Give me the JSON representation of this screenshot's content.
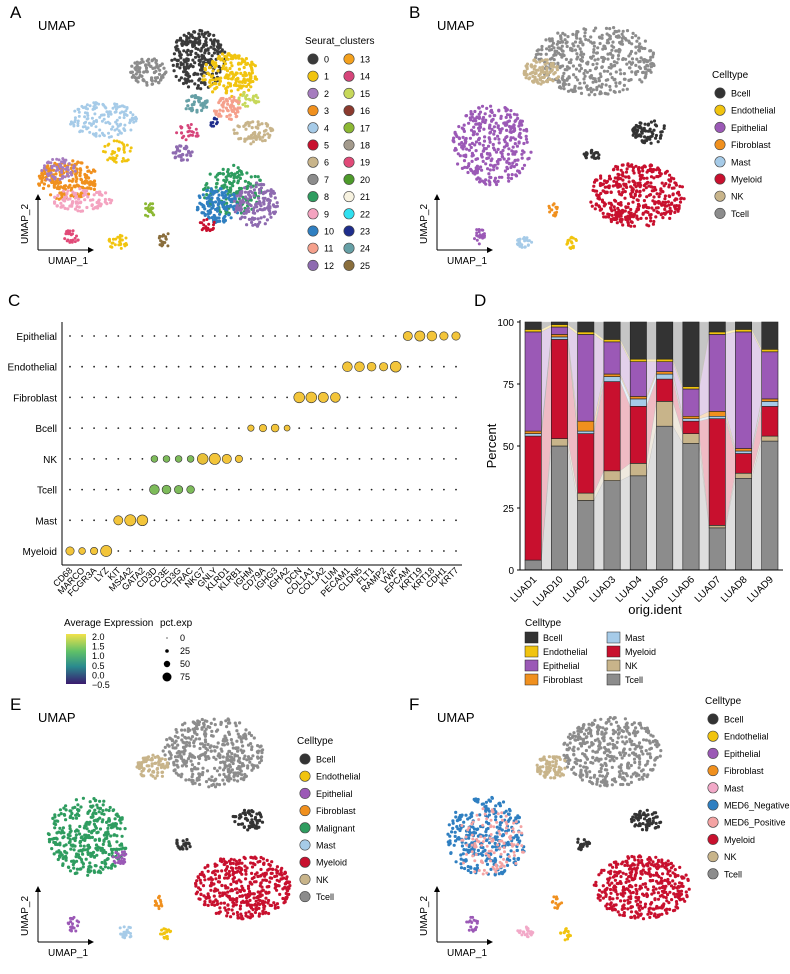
{
  "panels": {
    "A": {
      "letter": "A",
      "title": "UMAP",
      "xlabel": "UMAP_1",
      "ylabel": "UMAP_2",
      "legend_title": "Seurat_clusters"
    },
    "B": {
      "letter": "B",
      "title": "UMAP",
      "xlabel": "UMAP_1",
      "ylabel": "UMAP_2",
      "legend_title": "Celltype"
    },
    "C": {
      "letter": "C"
    },
    "D": {
      "letter": "D"
    },
    "E": {
      "letter": "E",
      "title": "UMAP",
      "xlabel": "UMAP_1",
      "ylabel": "UMAP_2",
      "legend_title": "Celltype"
    },
    "F": {
      "letter": "F",
      "title": "UMAP",
      "xlabel": "UMAP_1",
      "ylabel": "UMAP_2",
      "legend_title": "Celltype"
    }
  },
  "colors": {
    "Bcell": "#333333",
    "Endothelial": "#f1c40f",
    "Epithelial": "#9b59b6",
    "Fibroblast": "#f0901e",
    "Mast": "#a6cbe8",
    "Myeloid": "#c8102e",
    "NK": "#c8b48a",
    "Tcell": "#8c8c8c",
    "Malignant": "#2e9c5f",
    "MED6_Negative": "#2f7fc1",
    "MED6_Positive": "#f4a3a3",
    "MastF": "#f2a9c8"
  },
  "clusters": {
    "labels": [
      "0",
      "1",
      "2",
      "3",
      "4",
      "5",
      "6",
      "7",
      "8",
      "9",
      "10",
      "11",
      "12",
      "13",
      "14",
      "15",
      "16",
      "17",
      "18",
      "19",
      "20",
      "21",
      "22",
      "23",
      "24",
      "25"
    ],
    "colors": [
      "#3a3a3a",
      "#f1c40f",
      "#a67cbf",
      "#f0901e",
      "#a6cbe8",
      "#c8102e",
      "#c8b48a",
      "#8c8c8c",
      "#2e9c5f",
      "#f4a3c0",
      "#2f7fc1",
      "#f5a08c",
      "#8e6bb0",
      "#f4a11d",
      "#d6457a",
      "#c7d85a",
      "#8b3a2e",
      "#8cb833",
      "#a39a8c",
      "#e14a78",
      "#4d9a2a",
      "#f7f2e0",
      "#30e0f0",
      "#1e2d8c",
      "#66a0a6",
      "#8a6e3c"
    ]
  },
  "legendB": [
    "Bcell",
    "Endothelial",
    "Epithelial",
    "Fibroblast",
    "Mast",
    "Myeloid",
    "NK",
    "Tcell"
  ],
  "legendE": [
    "Bcell",
    "Endothelial",
    "Epithelial",
    "Fibroblast",
    "Malignant",
    "Mast",
    "Myeloid",
    "NK",
    "Tcell"
  ],
  "legendF": [
    "Bcell",
    "Endothelial",
    "Epithelial",
    "Fibroblast",
    "Mast",
    "MED6_Negative",
    "MED6_Positive",
    "Myeloid",
    "NK",
    "Tcell"
  ],
  "chart_data": [
    {
      "type": "scatter",
      "name": "dotplot",
      "rows": [
        "Epithelial",
        "Endothelial",
        "Fibroblast",
        "Bcell",
        "NK",
        "Tcell",
        "Mast",
        "Myeloid"
      ],
      "genes": [
        "CD68",
        "MARCO",
        "FCGR3A",
        "LYZ",
        "KIT",
        "MS4A2",
        "GATA2",
        "CD3D",
        "CD3E",
        "CD3G",
        "TRAC",
        "NKG7",
        "GNLY",
        "KLRD1",
        "KLRB1",
        "IGHM",
        "CD79A",
        "IGHG3",
        "IGHA2",
        "DCN",
        "COL1A1",
        "COL1A2",
        "LUM",
        "PECAM1",
        "CLDN5",
        "FLT1",
        "RAMP2",
        "VWF",
        "EPCAM",
        "KRT19",
        "KRT18",
        "CDH1",
        "KRT7"
      ],
      "highlights": [
        {
          "row": "Myeloid",
          "genes": [
            "CD68",
            "MARCO",
            "FCGR3A",
            "LYZ"
          ],
          "pct": [
            45,
            30,
            35,
            75
          ]
        },
        {
          "row": "Mast",
          "genes": [
            "KIT",
            "MS4A2",
            "GATA2"
          ],
          "pct": [
            55,
            75,
            70
          ]
        },
        {
          "row": "Tcell",
          "genes": [
            "CD3D",
            "CD3E",
            "CD3G",
            "TRAC"
          ],
          "pct": [
            60,
            50,
            45,
            40
          ]
        },
        {
          "row": "NK",
          "genes": [
            "CD3D",
            "CD3E",
            "CD3G",
            "TRAC",
            "NKG7",
            "GNLY",
            "KLRD1",
            "KLRB1"
          ],
          "pct": [
            30,
            30,
            30,
            30,
            70,
            75,
            55,
            35
          ]
        },
        {
          "row": "Bcell",
          "genes": [
            "IGHM",
            "CD79A",
            "IGHG3",
            "IGHA2"
          ],
          "pct": [
            25,
            35,
            40,
            20
          ]
        },
        {
          "row": "Fibroblast",
          "genes": [
            "DCN",
            "COL1A1",
            "COL1A2",
            "LUM"
          ],
          "pct": [
            70,
            70,
            65,
            60
          ]
        },
        {
          "row": "Endothelial",
          "genes": [
            "PECAM1",
            "CLDN5",
            "FLT1",
            "RAMP2",
            "VWF"
          ],
          "pct": [
            60,
            60,
            50,
            45,
            70
          ]
        },
        {
          "row": "Epithelial",
          "genes": [
            "EPCAM",
            "KRT19",
            "KRT18",
            "CDH1",
            "KRT7"
          ],
          "pct": [
            55,
            65,
            60,
            45,
            45
          ]
        }
      ],
      "legend_expr": {
        "title": "Average Expression",
        "ticks": [
          "2.0",
          "1.5",
          "1.0",
          "0.5",
          "0.0",
          "−0.5"
        ]
      },
      "legend_pct": {
        "title": "pct.exp",
        "ticks": [
          "0",
          "25",
          "50",
          "75"
        ]
      }
    },
    {
      "type": "bar",
      "name": "stacked-percent",
      "categories": [
        "LUAD1",
        "LUAD10",
        "LUAD2",
        "LUAD3",
        "LUAD4",
        "LUAD5",
        "LUAD6",
        "LUAD7",
        "LUAD8",
        "LUAD9"
      ],
      "series": [
        {
          "name": "Tcell",
          "values": [
            4,
            50,
            28,
            36,
            38,
            58,
            51,
            17,
            37,
            52
          ]
        },
        {
          "name": "NK",
          "values": [
            0,
            3,
            3,
            4,
            5,
            10,
            4,
            1,
            2,
            2
          ]
        },
        {
          "name": "Myeloid",
          "values": [
            50,
            40,
            24,
            36,
            23,
            9,
            5,
            43,
            8,
            12
          ]
        },
        {
          "name": "Mast",
          "values": [
            1,
            1,
            1,
            2,
            3,
            2,
            1,
            1,
            1,
            2
          ]
        },
        {
          "name": "Fibroblast",
          "values": [
            1,
            1,
            4,
            1,
            1,
            1,
            1,
            2,
            1,
            1
          ]
        },
        {
          "name": "Epithelial",
          "values": [
            40,
            3,
            35,
            13,
            14,
            4,
            11,
            31,
            47,
            19
          ]
        },
        {
          "name": "Endothelial",
          "values": [
            1,
            1,
            1,
            1,
            1,
            1,
            1,
            1,
            1,
            1
          ]
        },
        {
          "name": "Bcell",
          "values": [
            3,
            1,
            4,
            7,
            15,
            15,
            26,
            4,
            3,
            11
          ]
        }
      ],
      "xlabel": "orig.ident",
      "ylabel": "Percent",
      "ylim": [
        0,
        100
      ],
      "yticks": [
        "0",
        "25",
        "50",
        "75",
        "100"
      ],
      "legend_title": "Celltype",
      "legend_order": [
        "Bcell",
        "Endothelial",
        "Epithelial",
        "Fibroblast",
        "Mast",
        "Myeloid",
        "NK",
        "Tcell"
      ]
    }
  ]
}
